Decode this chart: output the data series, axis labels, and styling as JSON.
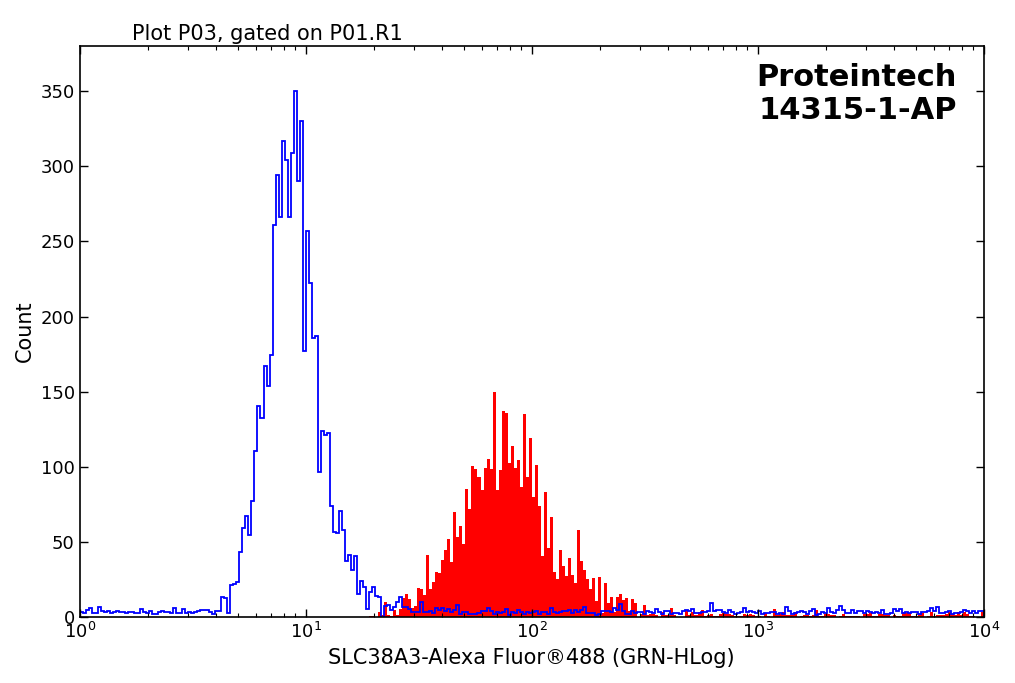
{
  "title": "Plot P03, gated on P01.R1",
  "xlabel": "SLC38A3-Alexa Fluor®488 (GRN-HLog)",
  "ylabel": "Count",
  "annotation_line1": "Proteintech",
  "annotation_line2": "14315-1-AP",
  "xlim_log": [
    0,
    4
  ],
  "ylim": [
    0,
    380
  ],
  "yticks": [
    0,
    50,
    100,
    150,
    200,
    250,
    300,
    350
  ],
  "background_color": "#ffffff",
  "plot_bg_color": "#ffffff",
  "blue_color": "#0000ff",
  "red_color": "#ff0000",
  "black_color": "#000000",
  "title_fontsize": 15,
  "label_fontsize": 15,
  "annotation_fontsize": 22,
  "blue_peak_log": 0.93,
  "blue_log_std": 0.1,
  "blue_peak_height": 350,
  "red_peak_log": 1.88,
  "red_log_std": 0.18,
  "red_peak_height": 150,
  "n_bins": 300
}
